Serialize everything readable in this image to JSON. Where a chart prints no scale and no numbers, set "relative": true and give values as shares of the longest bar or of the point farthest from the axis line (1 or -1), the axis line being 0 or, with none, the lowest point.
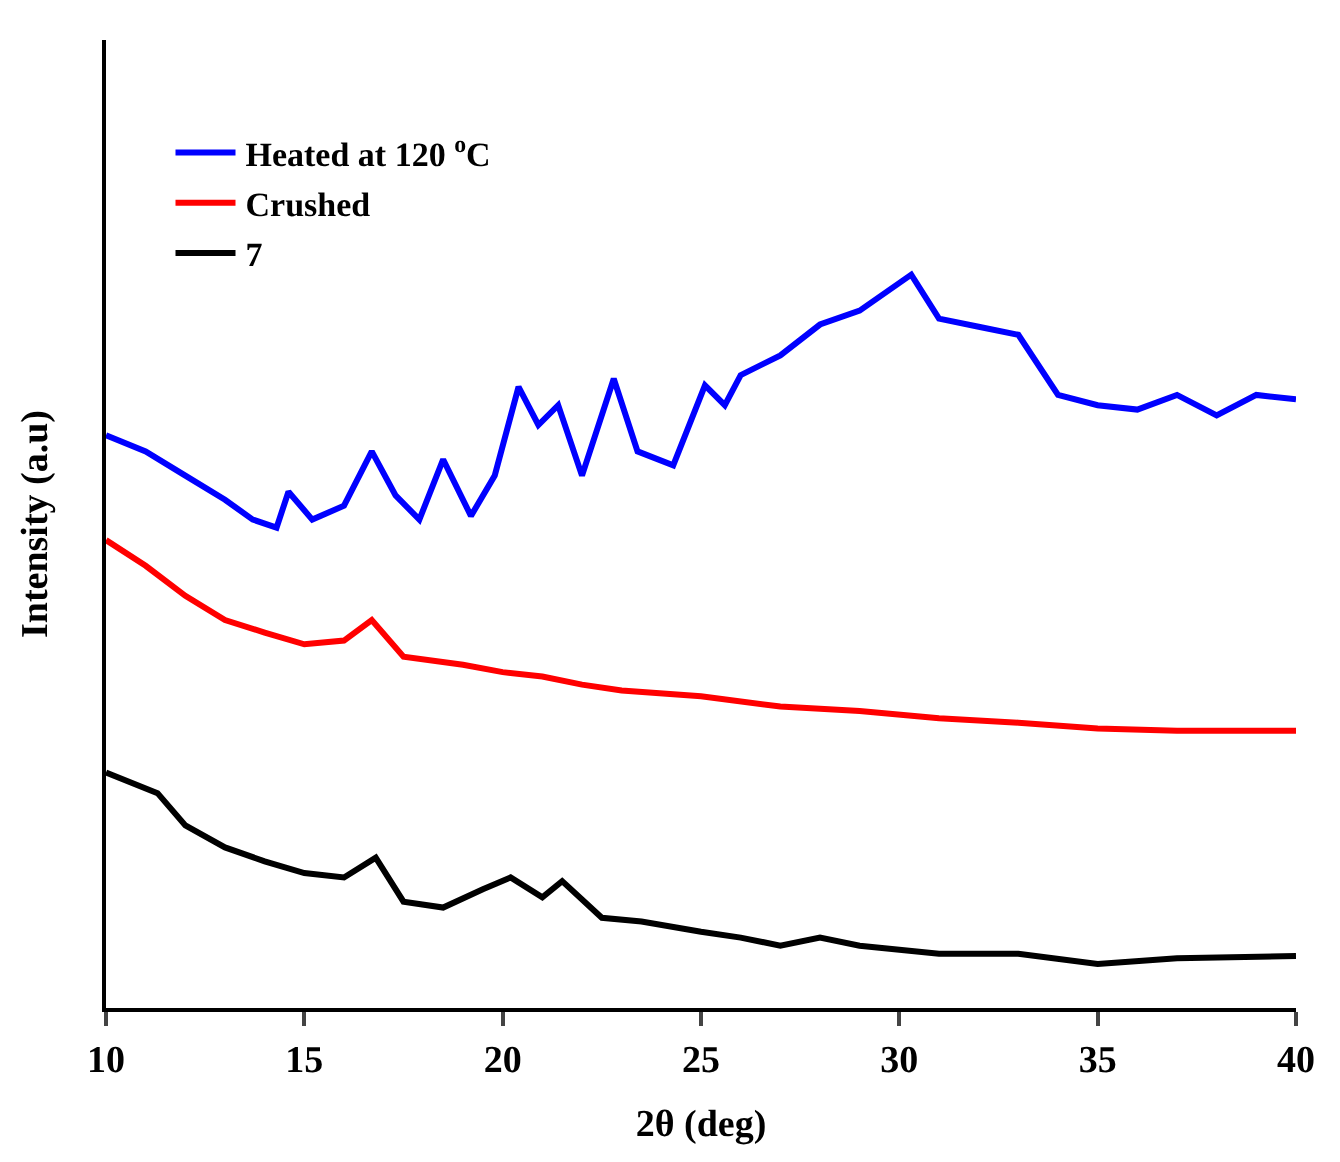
{
  "chart_data": {
    "type": "line",
    "relative": true,
    "xlabel": "2θ (deg)",
    "ylabel": "Intensity (a.u)",
    "xlim": [
      10,
      40
    ],
    "xticks": [
      10,
      15,
      20,
      25,
      30,
      35,
      40
    ],
    "legend": "top left",
    "marker": "none",
    "line_style": "solid",
    "tick_labels": "x",
    "series": [
      {
        "name": "Heated at 120 $^{o}$C",
        "color": "#0000ff",
        "x": [
          10.0,
          11.0,
          12.0,
          13.0,
          13.7,
          14.3,
          14.6,
          15.2,
          16.0,
          16.7,
          17.3,
          17.9,
          18.5,
          19.2,
          19.8,
          20.4,
          20.9,
          21.4,
          22.0,
          22.8,
          23.4,
          24.3,
          25.1,
          25.6,
          26.0,
          27.0,
          28.0,
          29.0,
          30.3,
          31.0,
          32.0,
          33.0,
          34.0,
          35.0,
          36.0,
          37.0,
          38.0,
          39.0,
          40.0
        ],
        "values": [
          0.781,
          0.759,
          0.726,
          0.693,
          0.666,
          0.655,
          0.704,
          0.666,
          0.685,
          0.759,
          0.699,
          0.666,
          0.748,
          0.671,
          0.726,
          0.847,
          0.795,
          0.822,
          0.726,
          0.858,
          0.759,
          0.74,
          0.849,
          0.822,
          0.863,
          0.89,
          0.932,
          0.951,
          1.0,
          0.94,
          0.929,
          0.918,
          0.836,
          0.822,
          0.816,
          0.836,
          0.808,
          0.836,
          0.83
        ]
      },
      {
        "name": "Crushed",
        "color": "#ff0000",
        "x": [
          10.0,
          11.0,
          12.0,
          13.0,
          14.0,
          15.0,
          16.0,
          16.7,
          17.5,
          19.0,
          20.0,
          21.0,
          22.0,
          23.0,
          25.0,
          27.0,
          29.0,
          31.0,
          33.0,
          35.0,
          37.0,
          40.0
        ],
        "values": [
          0.638,
          0.603,
          0.562,
          0.529,
          0.512,
          0.496,
          0.501,
          0.529,
          0.479,
          0.468,
          0.458,
          0.452,
          0.441,
          0.433,
          0.425,
          0.411,
          0.405,
          0.395,
          0.389,
          0.381,
          0.378,
          0.378
        ]
      },
      {
        "name": "7",
        "color": "#000000",
        "x": [
          10.0,
          11.3,
          12.0,
          13.0,
          14.0,
          15.0,
          16.0,
          16.8,
          17.5,
          18.5,
          19.5,
          20.2,
          21.0,
          21.5,
          22.5,
          23.5,
          25.0,
          26.0,
          27.0,
          28.0,
          29.0,
          31.0,
          33.0,
          35.0,
          37.0,
          40.0
        ],
        "values": [
          0.321,
          0.293,
          0.249,
          0.219,
          0.2,
          0.184,
          0.178,
          0.205,
          0.145,
          0.137,
          0.162,
          0.178,
          0.151,
          0.173,
          0.123,
          0.118,
          0.104,
          0.096,
          0.085,
          0.096,
          0.085,
          0.074,
          0.074,
          0.06,
          0.068,
          0.071
        ]
      }
    ]
  }
}
